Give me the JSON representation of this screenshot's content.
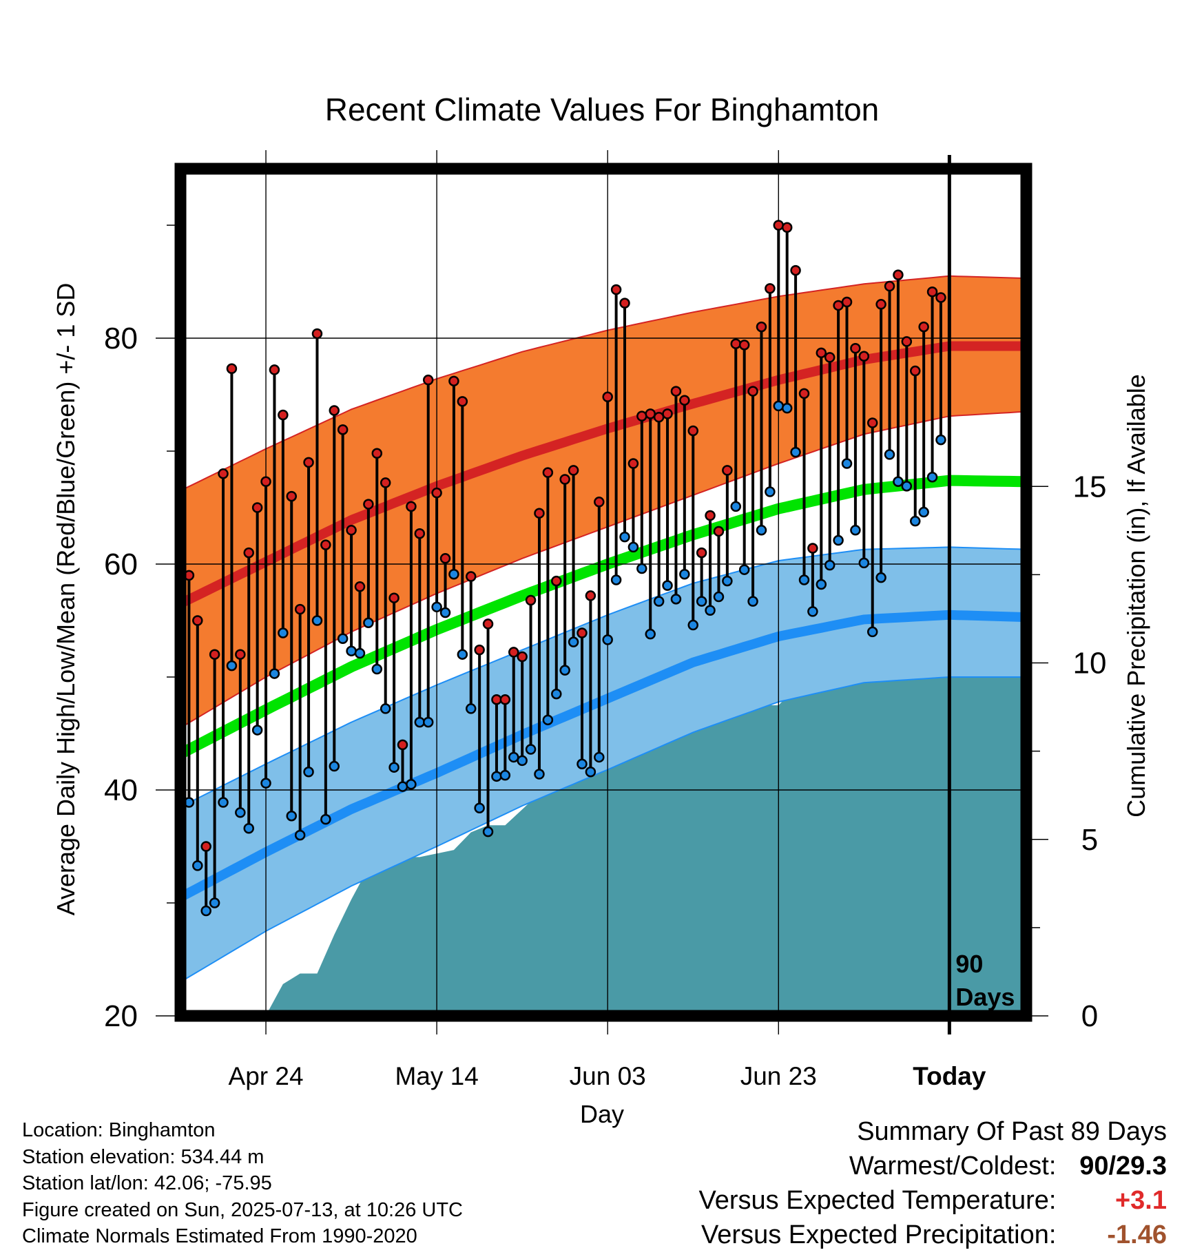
{
  "chart_data": {
    "type": "line",
    "title": "Recent Climate Values For Binghamton",
    "xlabel": "Day",
    "ylabel": "Average Daily High/Low/Mean (Red/Blue/Green) +/- 1 SD",
    "y2label": "Cumulative Precipitation (in), If Available",
    "ylim": [
      20,
      95
    ],
    "y2lim": [
      0,
      24
    ],
    "yticks": [
      "20",
      "40",
      "60",
      "80"
    ],
    "y2ticks": [
      "0",
      "5",
      "10",
      "15"
    ],
    "xticks": [
      "Apr 24",
      "May 14",
      "Jun 03",
      "Jun 23",
      "Today"
    ],
    "x_range_days": [
      -90,
      9
    ],
    "today_marker_label": [
      "90",
      "Days"
    ],
    "grid": true,
    "colors": {
      "high_mean": "#d42323",
      "high_band": "#f47b2f",
      "low_mean": "#1e8ef5",
      "low_band": "#7fbfe9",
      "mean": "#00e400",
      "precip": "#4a9aa6",
      "high_point": "#d42020",
      "low_point": "#1c86e0"
    },
    "normals": {
      "days": [
        -90,
        -80,
        -70,
        -60,
        -50,
        -40,
        -30,
        -20,
        -10,
        0,
        9
      ],
      "high_mean": [
        56.5,
        60.2,
        63.9,
        66.9,
        69.6,
        72.0,
        74.2,
        76.3,
        78.1,
        79.3,
        79.3
      ],
      "high_plus_sd": [
        66.5,
        70.2,
        73.7,
        76.4,
        78.8,
        80.7,
        82.3,
        83.7,
        84.8,
        85.5,
        85.3
      ],
      "high_minus_sd": [
        45.5,
        50.0,
        54.0,
        57.4,
        60.5,
        63.3,
        66.1,
        68.9,
        71.5,
        73.1,
        73.5
      ],
      "low_mean": [
        30.5,
        34.5,
        38.3,
        41.5,
        44.9,
        48.1,
        51.3,
        53.6,
        55.1,
        55.5,
        55.3
      ],
      "low_plus_sd": [
        38.5,
        42.3,
        46.0,
        49.3,
        52.4,
        55.5,
        58.3,
        60.3,
        61.3,
        61.5,
        61.3
      ],
      "low_minus_sd": [
        23.0,
        27.5,
        31.5,
        35.0,
        38.6,
        41.8,
        45.1,
        47.8,
        49.5,
        50.0,
        50.0
      ],
      "mean": [
        43.2,
        47.1,
        50.9,
        54.2,
        57.2,
        60.0,
        62.6,
        64.9,
        66.6,
        67.4,
        67.3
      ]
    },
    "series": [
      {
        "name": "High",
        "values": [
          59,
          55,
          35,
          52,
          68,
          77.3,
          52,
          61,
          65,
          67.3,
          77.2,
          73.2,
          66,
          56,
          69,
          80.4,
          61.7,
          73.6,
          71.9,
          63,
          58,
          65.3,
          69.8,
          67.2,
          57,
          44,
          65.1,
          62.7,
          76.3,
          66.3,
          60.5,
          76.2,
          74.4,
          58.9,
          52.4,
          54.7,
          48,
          48,
          52.2,
          51.8,
          56.8,
          64.5,
          68.1,
          58.5,
          67.5,
          68.3,
          53.9,
          57.2,
          65.5,
          74.8,
          84.3,
          83.1,
          68.9,
          73.1,
          73.3,
          73,
          73.3,
          75.3,
          74.5,
          71.8,
          61,
          64.3,
          62.9,
          68.3,
          79.5,
          79.4,
          75.3,
          81,
          84.4,
          90,
          89.8,
          86,
          75.1,
          61.4,
          78.7,
          78.3,
          82.9,
          83.2,
          79.1,
          78.4,
          72.5,
          83,
          84.6,
          85.6,
          79.7,
          77.1,
          81,
          84.1,
          83.6
        ]
      },
      {
        "name": "Low",
        "values": [
          38.9,
          33.3,
          29.3,
          30,
          38.9,
          51,
          38,
          36.6,
          45.3,
          40.6,
          50.3,
          53.9,
          37.7,
          36,
          41.6,
          55,
          37.4,
          42.1,
          53.4,
          52.3,
          52.1,
          54.8,
          50.7,
          47.2,
          42,
          40.3,
          40.5,
          46,
          46,
          56.2,
          55.7,
          59.1,
          52,
          47.2,
          38.4,
          36.3,
          41.2,
          41.3,
          42.9,
          42.6,
          43.6,
          41.4,
          46.2,
          48.5,
          50.6,
          53.1,
          42.3,
          41.6,
          42.9,
          53.3,
          58.6,
          62.4,
          61.5,
          59.6,
          53.8,
          56.7,
          58.1,
          56.9,
          59.1,
          54.6,
          56.7,
          55.9,
          57.1,
          58.5,
          65.1,
          59.5,
          56.7,
          63,
          66.4,
          74,
          73.8,
          69.9,
          58.6,
          55.8,
          58.2,
          59.9,
          62.1,
          68.9,
          63,
          60.1,
          54,
          58.8,
          69.7,
          67.3,
          66.9,
          63.8,
          64.6,
          67.7,
          71
        ]
      },
      {
        "name": "Cumulative Precipitation",
        "days": [
          -80,
          -78,
          -76,
          -74,
          -72,
          -70,
          -68,
          -66,
          -64,
          -62,
          -58,
          -56,
          -54,
          -52,
          -48,
          -46,
          -44,
          -42,
          -38,
          -36,
          -32,
          -30,
          -28,
          -26,
          -22,
          -20,
          -18,
          -16,
          -12,
          -10,
          -8,
          -6,
          -4,
          -2,
          0,
          2,
          4,
          6,
          9
        ],
        "values": [
          0.01,
          0.9,
          1.2,
          1.2,
          2.3,
          3.3,
          4.2,
          4.4,
          4.5,
          4.5,
          4.7,
          5.2,
          5.4,
          5.4,
          6.3,
          6.6,
          6.7,
          6.8,
          7.5,
          7.5,
          8.1,
          8.4,
          8.6,
          8.6,
          8.8,
          8.8,
          9.3,
          9.6,
          11.4,
          11.5,
          11.7,
          11.7,
          11.9,
          11.9,
          12.1,
          12.2,
          12.4,
          12.4,
          12.4
        ]
      }
    ]
  },
  "location": "Location: Binghamton",
  "station_elevation": "Station elevation: 534.44 m",
  "station_latlon": "Station lat/lon: 42.06; -75.95",
  "created": "Figure created on Sun, 2025-07-13, at 10:26 UTC",
  "normals_period": "Climate Normals Estimated From 1990-2020",
  "summary": {
    "title": "Summary Of Past 89 Days",
    "warmest_coldest_label": "Warmest/Coldest:",
    "warmest_coldest_value": "90/29.3",
    "vs_temp_label": "Versus Expected Temperature:",
    "vs_temp_value": "+3.1",
    "vs_temp_color": "#e02a2a",
    "vs_precip_label": "Versus Expected Precipitation:",
    "vs_precip_value": "-1.46",
    "vs_precip_color": "#a0522d"
  }
}
